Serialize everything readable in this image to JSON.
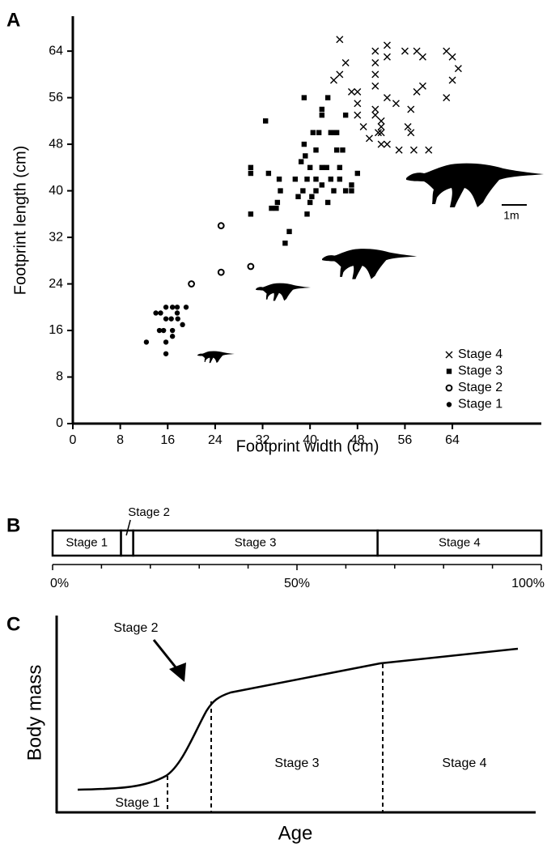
{
  "chart_data": [
    {
      "type": "scatter",
      "label": "A",
      "xlabel": "Footprint width (cm)",
      "ylabel": "Footprint length (cm)",
      "scale_label": "1m",
      "xlim": [
        0,
        79
      ],
      "ylim": [
        0,
        70
      ],
      "xticks": [
        0,
        8,
        16,
        24,
        32,
        40,
        48,
        56,
        64
      ],
      "yticks": [
        0,
        8,
        16,
        24,
        32,
        40,
        48,
        56,
        64
      ],
      "legend": "lower right",
      "series": [
        {
          "name": "Stage 4",
          "marker": "cross",
          "color": "#000000",
          "x": [
            45,
            44,
            45,
            46,
            47,
            48,
            48,
            48,
            49,
            51,
            51,
            51,
            51,
            51,
            51,
            52,
            52,
            52,
            51.5,
            53,
            53,
            53,
            53,
            54.5,
            55,
            56,
            56.5,
            57,
            57,
            57.5,
            58,
            58,
            59,
            59,
            60,
            63,
            63,
            64,
            64,
            65,
            50,
            52
          ],
          "values": [
            66,
            59,
            60,
            62,
            57,
            57,
            53,
            55,
            51,
            64,
            62,
            60,
            58,
            54,
            53,
            51,
            52,
            50,
            50,
            65,
            63,
            56,
            48,
            55,
            47,
            64,
            51,
            54,
            50,
            47,
            64,
            57,
            58,
            63,
            47,
            64,
            56,
            59,
            63,
            61,
            49,
            48
          ]
        },
        {
          "name": "Stage 3",
          "marker": "square",
          "color": "#000000",
          "x": [
            30,
            30,
            30,
            32.5,
            33,
            33.5,
            34.3,
            34.5,
            35,
            34.8,
            35.8,
            36.5,
            37.5,
            38,
            38.5,
            38.8,
            39,
            39,
            39.2,
            39.5,
            39.5,
            40,
            40,
            40.3,
            40.5,
            41,
            41,
            41,
            41.5,
            42,
            42,
            42,
            42.8,
            43,
            43,
            43.5,
            44,
            44,
            44.5,
            44.5,
            45,
            45,
            46,
            46,
            47,
            47,
            48,
            43.5,
            45.5,
            42
          ],
          "values": [
            36,
            43,
            44,
            52,
            43,
            37,
            37,
            38,
            40,
            42,
            31,
            33,
            42,
            39,
            45,
            40,
            56,
            48,
            46,
            36,
            42,
            38,
            44,
            39,
            50,
            42,
            47,
            40,
            50,
            53,
            41,
            54,
            44,
            38,
            56,
            42,
            40,
            50,
            50,
            47,
            44,
            42,
            40,
            53,
            41,
            40,
            43,
            50,
            47,
            44
          ]
        },
        {
          "name": "Stage 2",
          "marker": "open-circle",
          "color": "#000000",
          "x": [
            20,
            25,
            25,
            30
          ],
          "values": [
            24,
            34,
            26,
            27
          ]
        },
        {
          "name": "Stage 1",
          "marker": "dot",
          "color": "#000000",
          "x": [
            12.4,
            14.6,
            14,
            15.7,
            15.7,
            16.8,
            17.6,
            19.1,
            16.6,
            17.7,
            18.5,
            15.3,
            16.8,
            16.8,
            15.7,
            15.7,
            17.6,
            14.8
          ],
          "values": [
            14,
            16,
            19,
            18,
            20,
            20,
            20,
            20,
            18,
            18,
            17,
            16,
            16,
            15,
            14,
            12,
            19,
            19
          ]
        }
      ]
    },
    {
      "type": "stacked_bar",
      "label": "B",
      "categories": [
        "Stage 1",
        "Stage 2",
        "Stage 3",
        "Stage 4"
      ],
      "values": [
        14,
        2.5,
        50,
        33.5
      ],
      "xlim": [
        0,
        100
      ],
      "xticks": [
        {
          "value": 0,
          "label": "0%"
        },
        {
          "value": 50,
          "label": "50%"
        },
        {
          "value": 100,
          "label": "100%"
        }
      ],
      "minor_xticks": [
        10,
        20,
        30,
        40,
        60,
        70,
        80,
        90
      ]
    },
    {
      "type": "schematic",
      "label": "C",
      "xlabel": "Age",
      "ylabel": "Body mass",
      "stage_labels": [
        "Stage 1",
        "Stage 2",
        "Stage 3",
        "Stage 4"
      ]
    }
  ]
}
